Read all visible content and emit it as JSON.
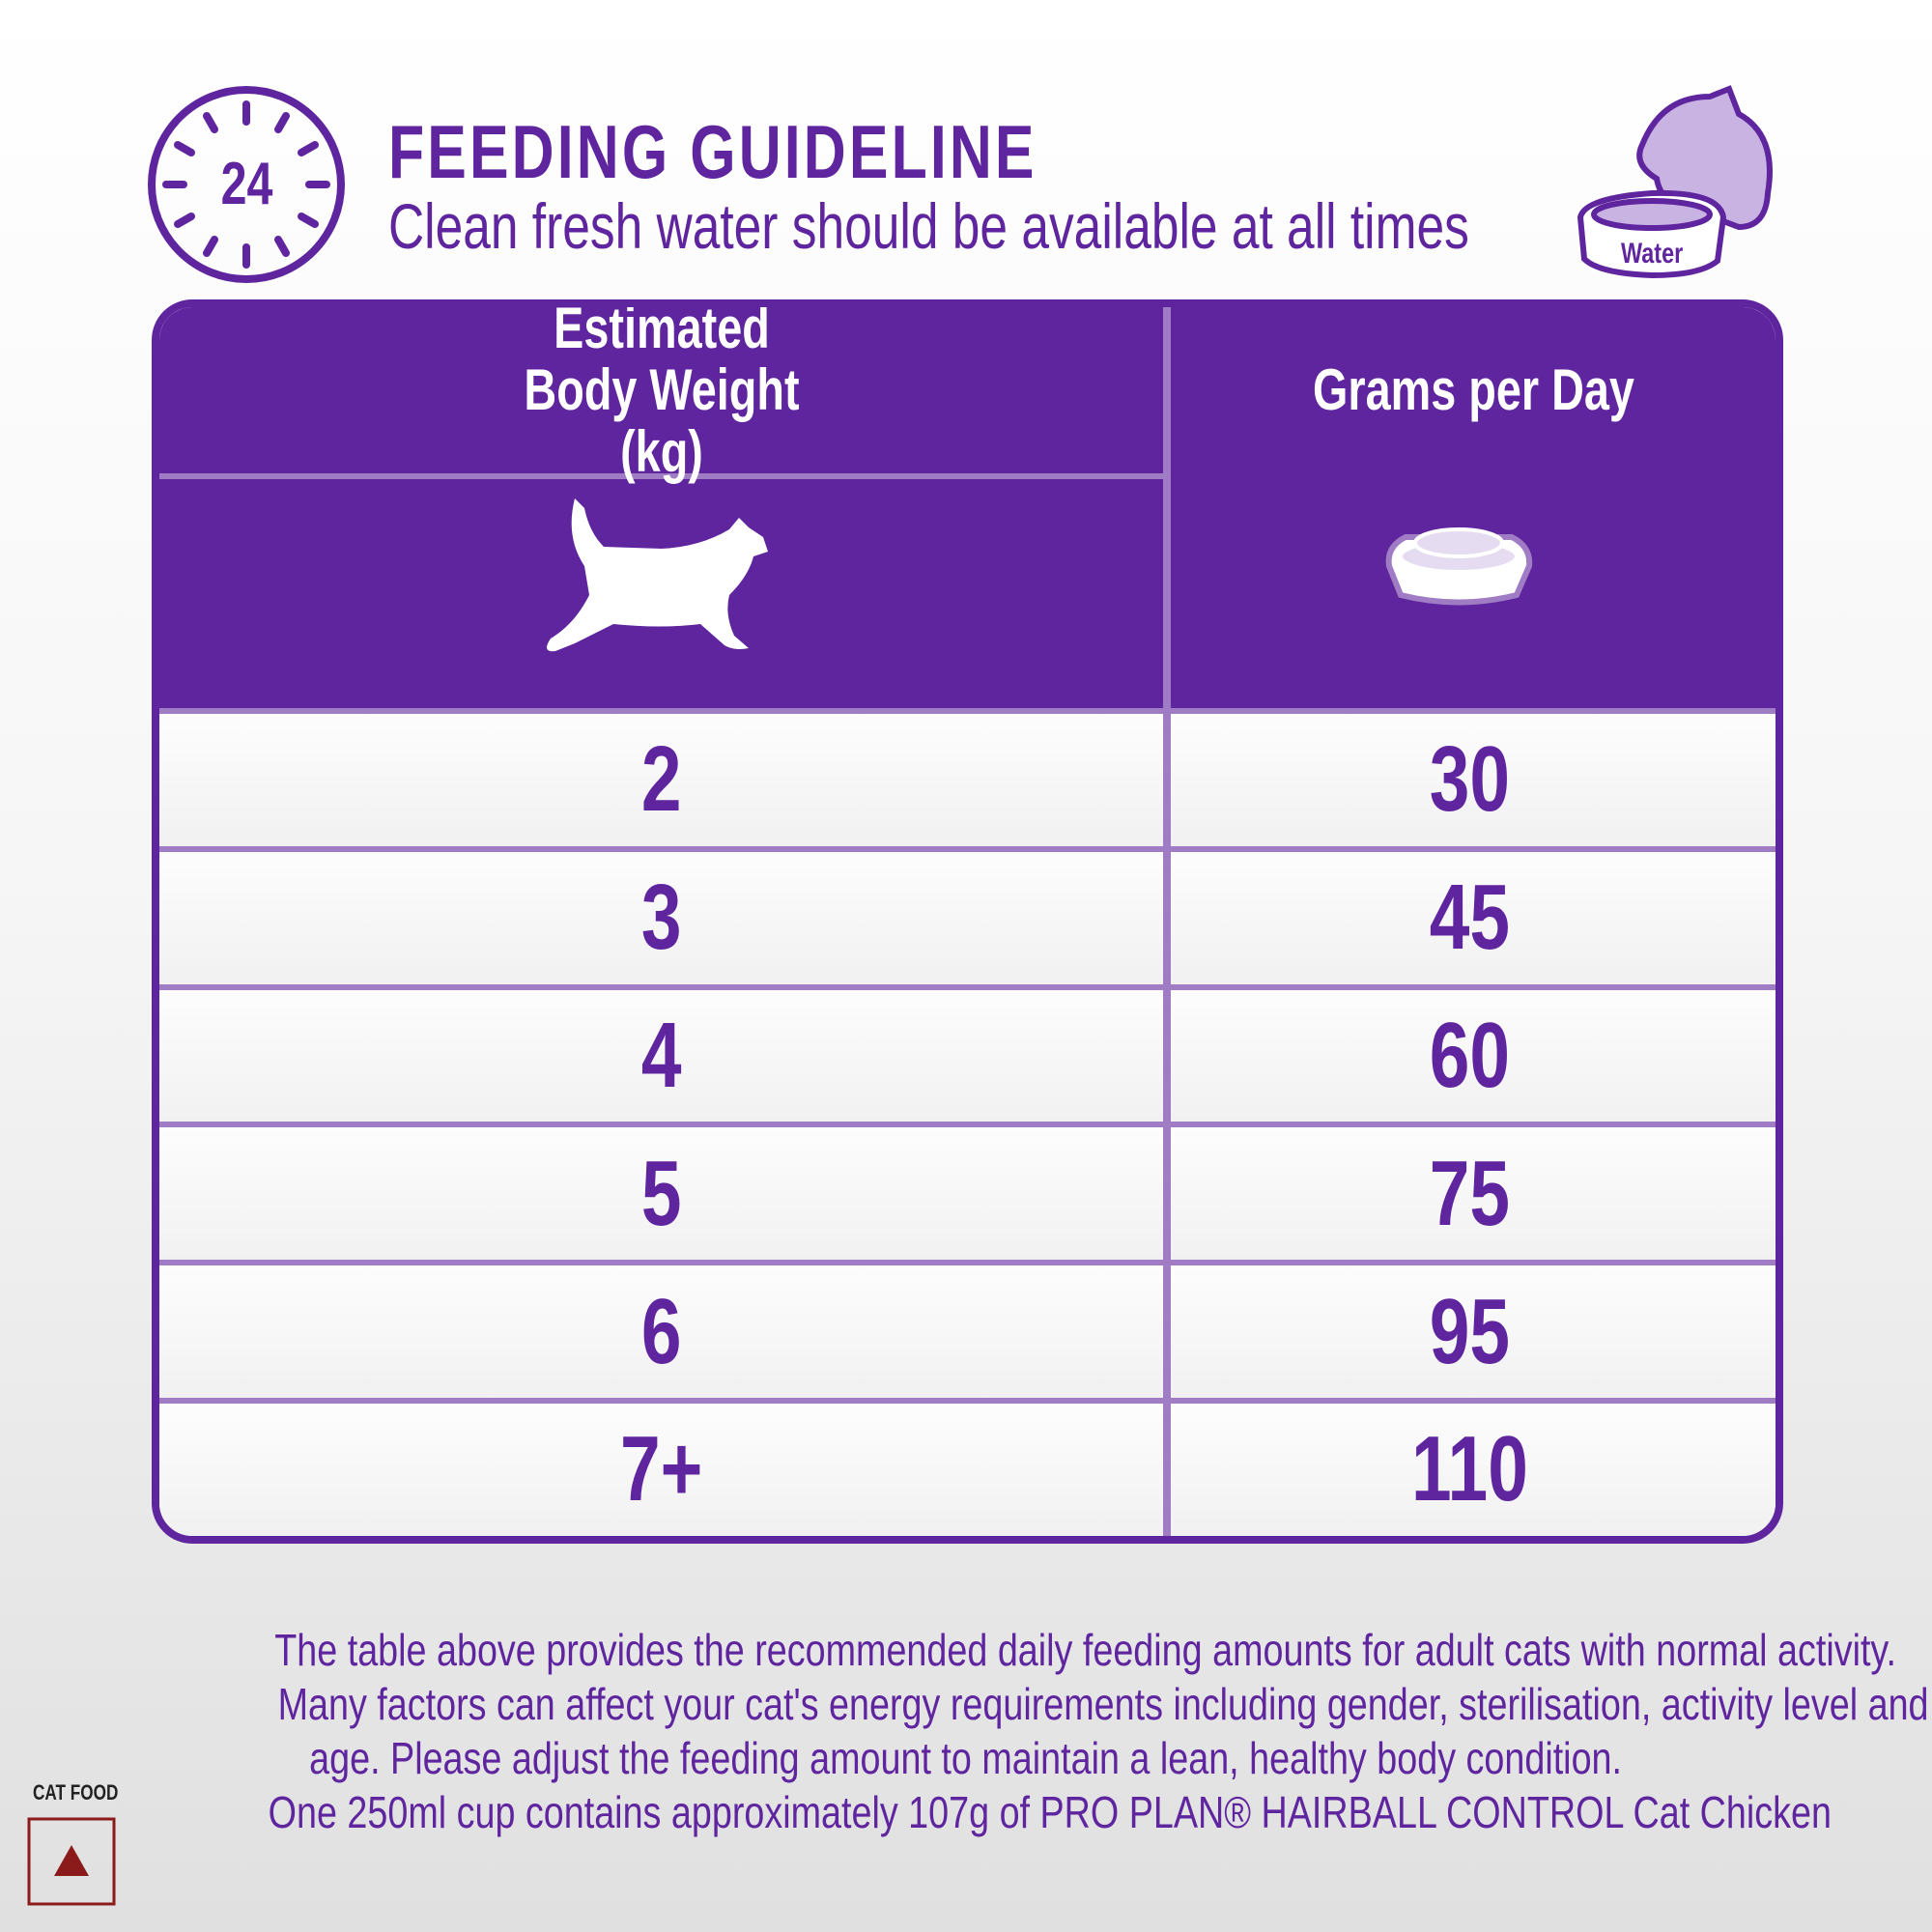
{
  "header": {
    "badge": "24",
    "title": "FEEDING GUIDELINE",
    "subtitle": "Clean fresh water should be available at all times",
    "water_label": "Water"
  },
  "table": {
    "headers": [
      "Estimated Body Weight (kg)",
      "Grams per Day"
    ],
    "rows": [
      [
        2,
        30
      ],
      [
        3,
        45
      ],
      [
        4,
        60
      ],
      [
        5,
        75
      ],
      [
        6,
        95
      ],
      [
        "7+",
        110
      ]
    ]
  },
  "footnote": {
    "lines": [
      "The table above provides the recommended daily feeding amounts for adult cats with normal activity.",
      "Many factors can affect your cat's energy requirements including gender, sterilisation, activity level and",
      "age. Please adjust the feeding amount to maintain a lean, healthy body condition.",
      "One 250ml cup contains approximately 107g of PRO PLAN® HAIRBALL CONTROL Cat Chicken"
    ]
  },
  "badge": {
    "label": "CAT FOOD"
  }
}
